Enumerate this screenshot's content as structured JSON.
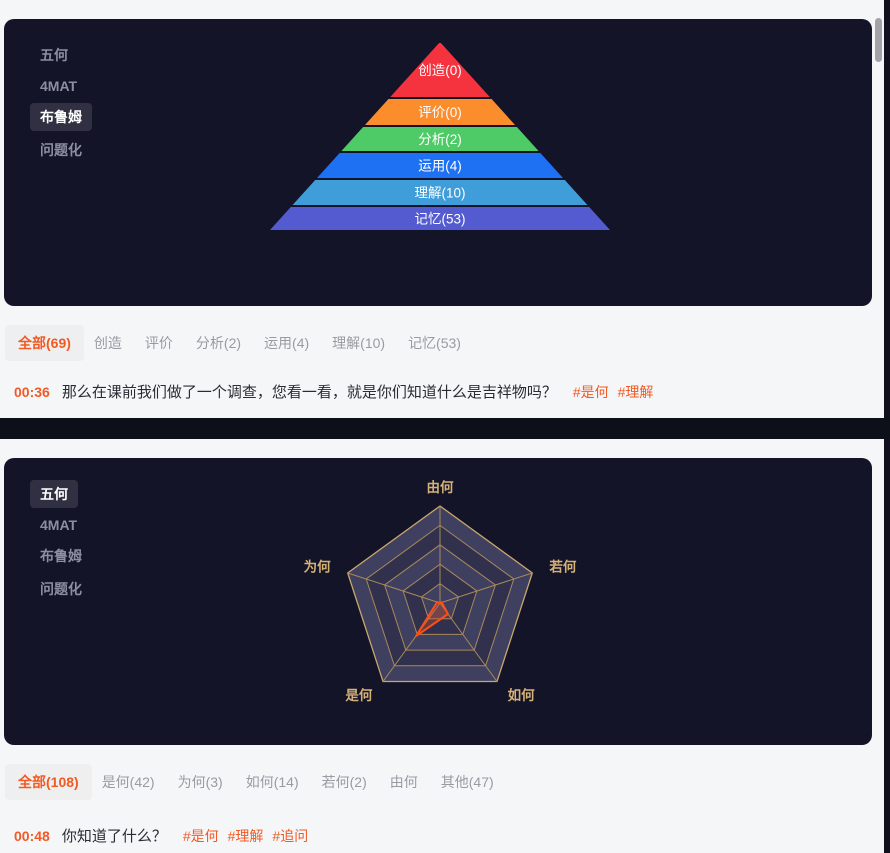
{
  "page": {
    "bg_color": "#f5f6f8",
    "panel_bg_color": "#141428",
    "accent_color": "#f15a24",
    "divider_color": "#0d1018"
  },
  "bloom": {
    "sidebar": [
      {
        "label": "五何",
        "active": false
      },
      {
        "label": "4MAT",
        "active": false
      },
      {
        "label": "布鲁姆",
        "active": true
      },
      {
        "label": "问题化",
        "active": false
      }
    ],
    "tabs": [
      {
        "label": "全部(69)",
        "active": true
      },
      {
        "label": "创造",
        "active": false
      },
      {
        "label": "评价",
        "active": false
      },
      {
        "label": "分析(2)",
        "active": false
      },
      {
        "label": "运用(4)",
        "active": false
      },
      {
        "label": "理解(10)",
        "active": false
      },
      {
        "label": "记忆(53)",
        "active": false
      }
    ],
    "transcript": {
      "time": "00:36",
      "text": "那么在课前我们做了一个调查，您看一看，就是你们知道什么是吉祥物吗？",
      "tags": [
        "#是何",
        "#理解"
      ]
    }
  },
  "wuhe": {
    "sidebar": [
      {
        "label": "五何",
        "active": true
      },
      {
        "label": "4MAT",
        "active": false
      },
      {
        "label": "布鲁姆",
        "active": false
      },
      {
        "label": "问题化",
        "active": false
      }
    ],
    "tabs": [
      {
        "label": "全部(108)",
        "active": true
      },
      {
        "label": "是何(42)",
        "active": false
      },
      {
        "label": "为何(3)",
        "active": false
      },
      {
        "label": "如何(14)",
        "active": false
      },
      {
        "label": "若何(2)",
        "active": false
      },
      {
        "label": "由何",
        "active": false
      },
      {
        "label": "其他(47)",
        "active": false
      }
    ],
    "transcript": {
      "time": "00:48",
      "text": "你知道了什么？",
      "tags": [
        "#是何",
        "#理解",
        "#追问"
      ]
    }
  },
  "chart_data": [
    {
      "type": "pyramid",
      "categories": [
        "创造",
        "评价",
        "分析",
        "运用",
        "理解",
        "记忆"
      ],
      "values": [
        0,
        0,
        2,
        4,
        10,
        53
      ],
      "colors": [
        "#f5333f",
        "#fb8d2c",
        "#4ecb66",
        "#1f71f4",
        "#3f9ed9",
        "#545ad0"
      ],
      "label_color": "#ffffff",
      "label_format": "name(value)"
    },
    {
      "type": "radar",
      "axes": [
        "由何",
        "若何",
        "如何",
        "是何",
        "为何"
      ],
      "values": [
        0,
        2,
        14,
        42,
        3
      ],
      "max": 100,
      "rings": 5,
      "grid_color": "#a8895a",
      "outer_ring_color": "#c9a76b",
      "label_color": "#d5b177",
      "series_color": "#ff4e14",
      "series_fill": "rgba(240,80,35,0.3)",
      "ring_fill_light": "#3f3f60",
      "ring_fill_dark": "#31314e"
    }
  ]
}
